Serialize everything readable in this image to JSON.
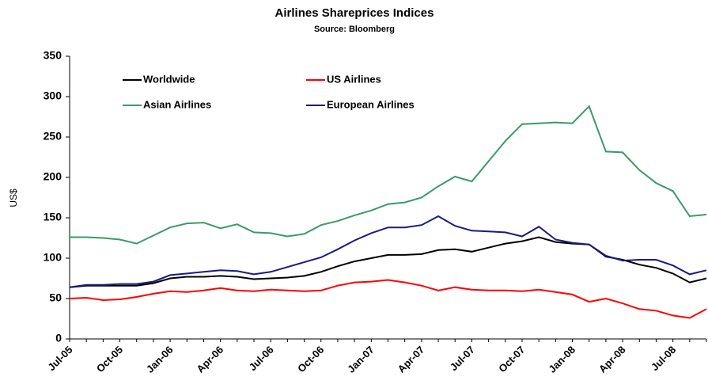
{
  "chart_data": {
    "type": "line",
    "title": "Airlines Shareprices Indices",
    "subtitle": "Source: Bloomberg",
    "y_label": "US$",
    "categories": [
      "Jul-05",
      null,
      null,
      "Oct-05",
      null,
      null,
      "Jan-06",
      null,
      null,
      "Apr-06",
      null,
      null,
      "Jul-06",
      null,
      null,
      "Oct-06",
      null,
      null,
      "Jan-07",
      null,
      null,
      "Apr-07",
      null,
      null,
      "Jul-07",
      null,
      null,
      "Oct-07",
      null,
      null,
      "Jan-08",
      null,
      null,
      "Apr-08",
      null,
      null,
      "Jul-08",
      null,
      null
    ],
    "series": [
      {
        "name": "Worldwide",
        "color": "#000000",
        "values": [
          64,
          66,
          66,
          66,
          66,
          69,
          75,
          77,
          77,
          78,
          77,
          74,
          75,
          76,
          78,
          83,
          90,
          96,
          100,
          104,
          104,
          105,
          110,
          111,
          108,
          113,
          118,
          121,
          126,
          120,
          118,
          117,
          102,
          98,
          92,
          88,
          81,
          70,
          75
        ]
      },
      {
        "name": "US Airlines",
        "color": "#ff0000",
        "values": [
          50,
          51,
          48,
          49,
          52,
          56,
          59,
          58,
          60,
          63,
          60,
          59,
          61,
          60,
          59,
          60,
          66,
          70,
          71,
          73,
          70,
          66,
          60,
          64,
          61,
          60,
          60,
          59,
          61,
          58,
          55,
          46,
          50,
          44,
          37,
          35,
          29,
          26,
          37
        ]
      },
      {
        "name": "Asian Airlines",
        "color": "#3a9a6a",
        "values": [
          126,
          126,
          125,
          123,
          118,
          128,
          138,
          143,
          144,
          137,
          142,
          132,
          131,
          127,
          130,
          141,
          146,
          153,
          159,
          167,
          169,
          175,
          189,
          201,
          195,
          220,
          245,
          266,
          267,
          268,
          267,
          288,
          232,
          231,
          209,
          193,
          183,
          152,
          154
        ]
      },
      {
        "name": "European Airlines",
        "color": "#1a1a80",
        "values": [
          64,
          67,
          67,
          68,
          68,
          71,
          79,
          81,
          83,
          85,
          84,
          80,
          83,
          89,
          95,
          101,
          111,
          122,
          131,
          138,
          138,
          141,
          152,
          140,
          134,
          133,
          132,
          127,
          139,
          123,
          119,
          117,
          103,
          97,
          98,
          98,
          91,
          80,
          85
        ]
      }
    ],
    "ylim": [
      0,
      350
    ],
    "yticks": [
      0,
      50,
      100,
      150,
      200,
      250,
      300,
      350
    ],
    "legend": "top-left"
  }
}
